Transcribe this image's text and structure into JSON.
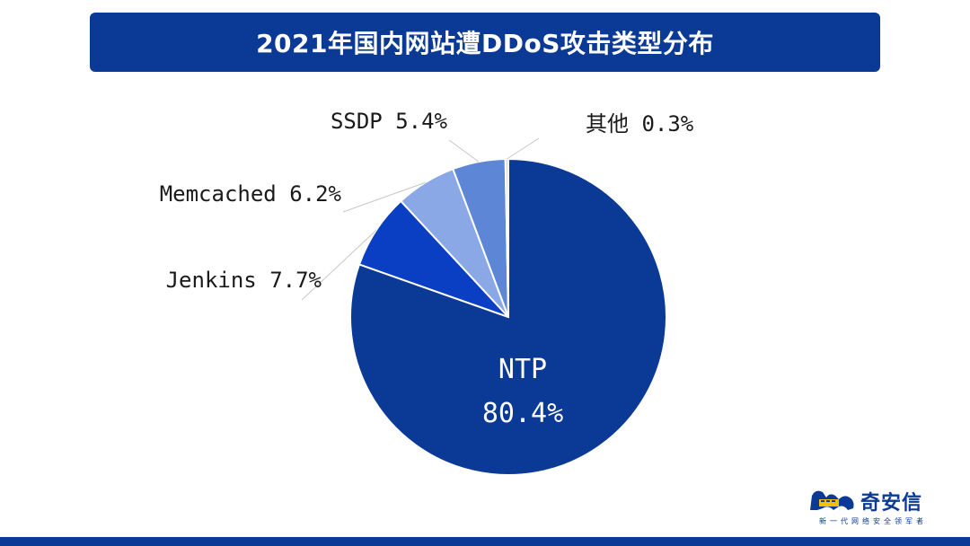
{
  "header": {
    "title": "2021年国内网站遭DDoS攻击类型分布"
  },
  "chart_data": {
    "type": "pie",
    "title": "2021年国内网站遭DDoS攻击类型分布",
    "slices": [
      {
        "name": "NTP",
        "value": 80.4,
        "label": "80.4%",
        "color": "#0b3a96"
      },
      {
        "name": "Jenkins",
        "value": 7.7,
        "label": "7.7%",
        "color": "#0a3fc4"
      },
      {
        "name": "Memcached",
        "value": 6.2,
        "label": "6.2%",
        "color": "#8aa7e6"
      },
      {
        "name": "SSDP",
        "value": 5.4,
        "label": "5.4%",
        "color": "#5d87d6"
      },
      {
        "name": "其他",
        "value": 0.3,
        "label": "0.3%",
        "color": "#d9d9d9"
      }
    ],
    "legend": "none",
    "grid": false
  },
  "brand": {
    "name": "奇安信",
    "slogan": "新一代网络安全领军者"
  }
}
